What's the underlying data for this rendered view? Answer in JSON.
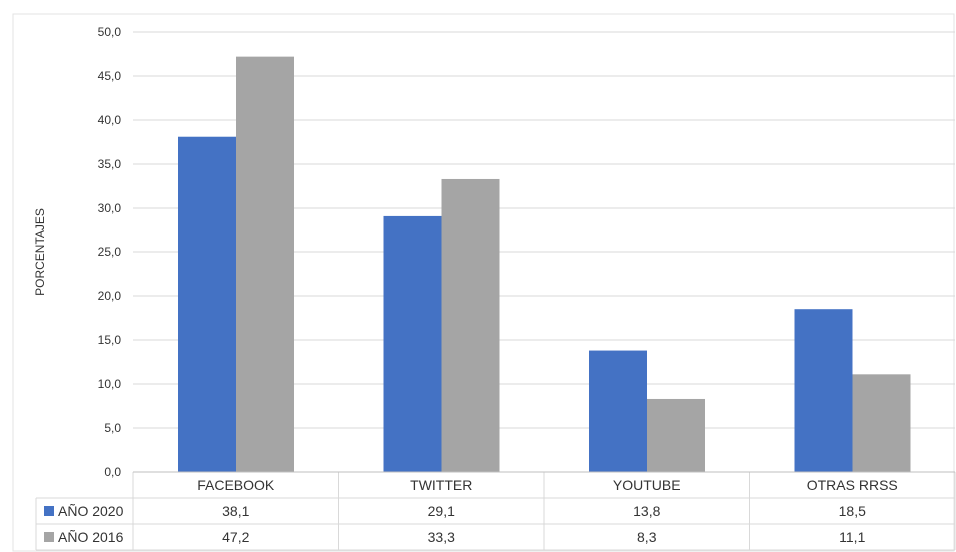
{
  "chart_data": {
    "type": "bar",
    "ylabel": "PORCENTAJES",
    "ylim": [
      0,
      50
    ],
    "ytick_step": 5,
    "ytick_labels": [
      "0,0",
      "5,0",
      "10,0",
      "15,0",
      "20,0",
      "25,0",
      "30,0",
      "35,0",
      "40,0",
      "45,0",
      "50,0"
    ],
    "grid": true,
    "legend": "data-table-below",
    "categories": [
      "FACEBOOK",
      "TWITTER",
      "YOUTUBE",
      "OTRAS RRSS"
    ],
    "series": [
      {
        "name": "AÑO 2020",
        "color": "#4472C4",
        "values": [
          38.1,
          29.1,
          13.8,
          18.5
        ],
        "labels": [
          "38,1",
          "29,1",
          "13,8",
          "18,5"
        ]
      },
      {
        "name": "AÑO 2016",
        "color": "#A5A5A5",
        "values": [
          47.2,
          33.3,
          8.3,
          11.1
        ],
        "labels": [
          "47,2",
          "33,3",
          "8,3",
          "11,1"
        ]
      }
    ]
  }
}
